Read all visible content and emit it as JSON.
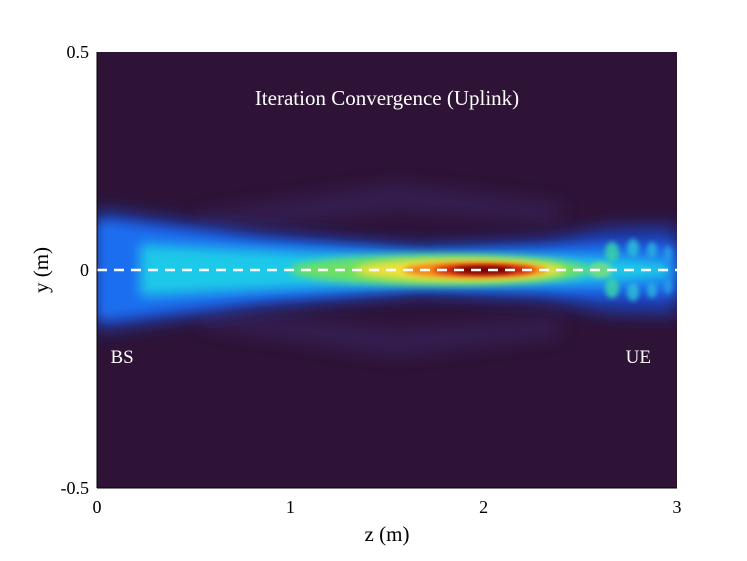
{
  "chart_data": {
    "type": "heatmap",
    "title": "Iteration Convergence (Uplink)",
    "xlabel": "z (m)",
    "ylabel": "y (m)",
    "xlim": [
      0,
      3
    ],
    "ylim": [
      -0.5,
      0.5
    ],
    "x_ticks": [
      0,
      1,
      2,
      3
    ],
    "x_tick_labels": [
      "0",
      "1",
      "2",
      "3"
    ],
    "y_ticks": [
      -0.5,
      0,
      0.5
    ],
    "y_tick_labels": [
      "-0.5",
      "0",
      "0.5"
    ],
    "colormap": "jet",
    "background_color": "#2e1337",
    "beam_peak": {
      "z": 2.0,
      "y": 0.0
    },
    "reference_line": {
      "y": 0,
      "style": "dashed",
      "color": "#ffffff"
    },
    "annotations": [
      {
        "text": "BS",
        "z": 0.13,
        "y": -0.2
      },
      {
        "text": "UE",
        "z": 2.8,
        "y": -0.2
      }
    ],
    "grid": false
  }
}
